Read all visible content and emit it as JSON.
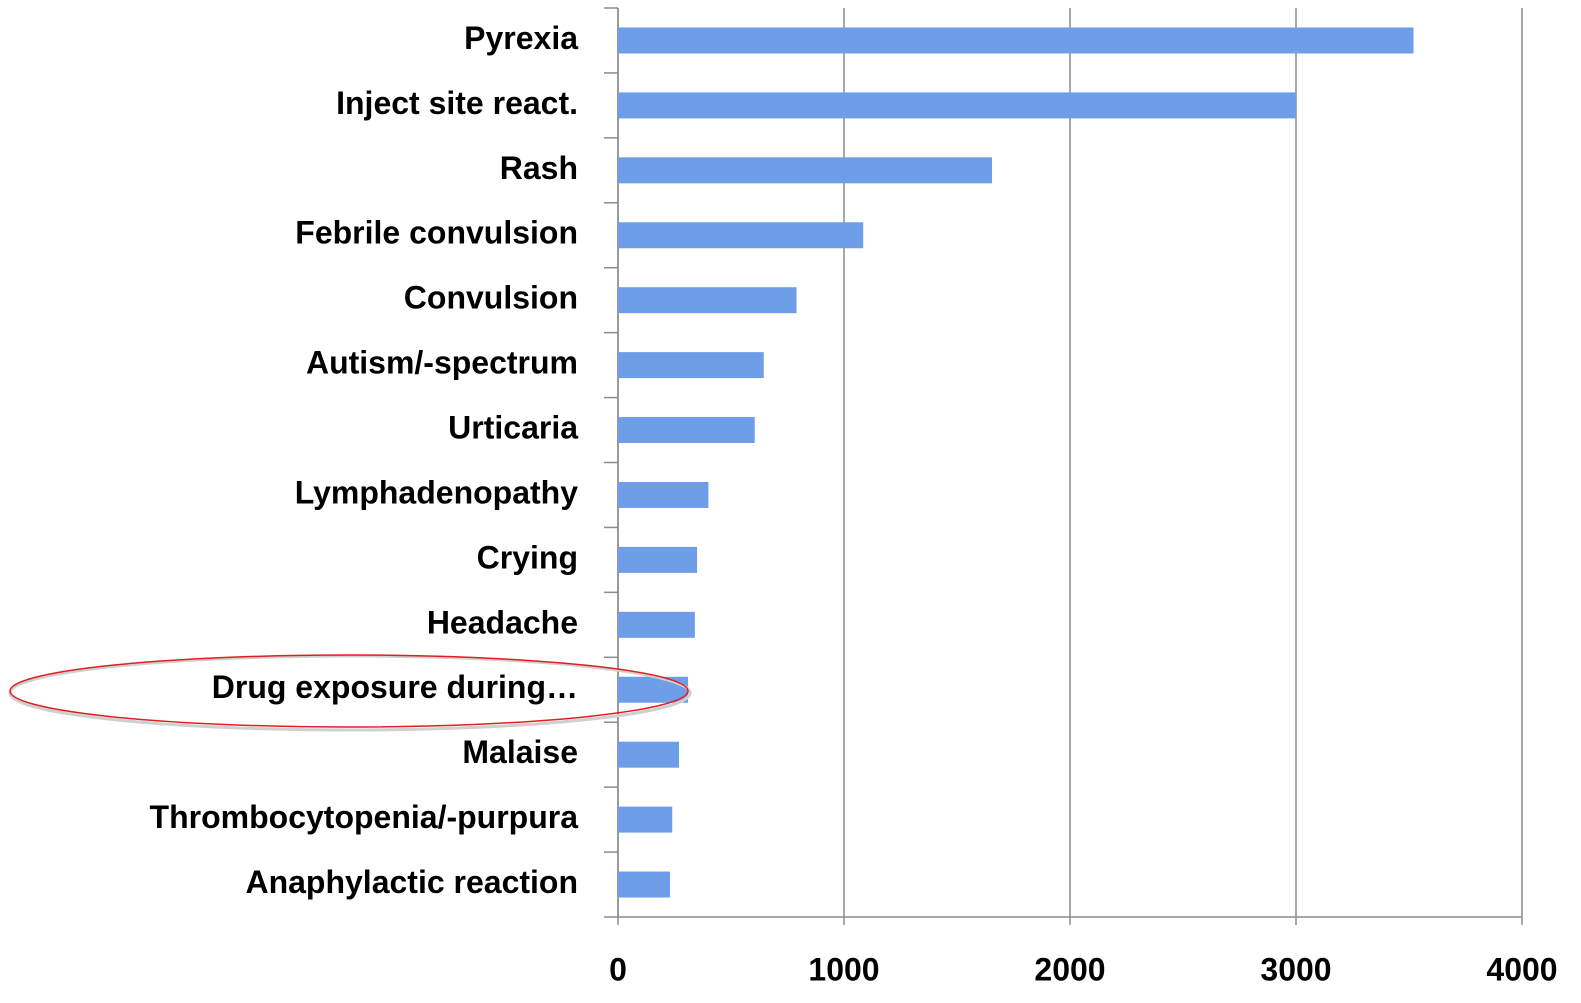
{
  "chart_data": {
    "type": "bar",
    "orientation": "horizontal",
    "categories": [
      "Pyrexia",
      "Inject site react.",
      "Rash",
      "Febrile convulsion",
      "Convulsion",
      "Autism/-spectrum",
      "Urticaria",
      "Lymphadenopathy",
      "Crying",
      "Headache",
      "Drug exposure during…",
      "Malaise",
      "Thrombocytopenia/-purpura",
      "Anaphylactic reaction"
    ],
    "values": [
      3520,
      3000,
      1655,
      1085,
      790,
      645,
      605,
      400,
      350,
      340,
      310,
      270,
      240,
      230
    ],
    "color": "#6f9ee9",
    "xlim": [
      0,
      4000
    ],
    "xticks": [
      0,
      1000,
      2000,
      3000,
      4000
    ],
    "grid": true
  }
}
